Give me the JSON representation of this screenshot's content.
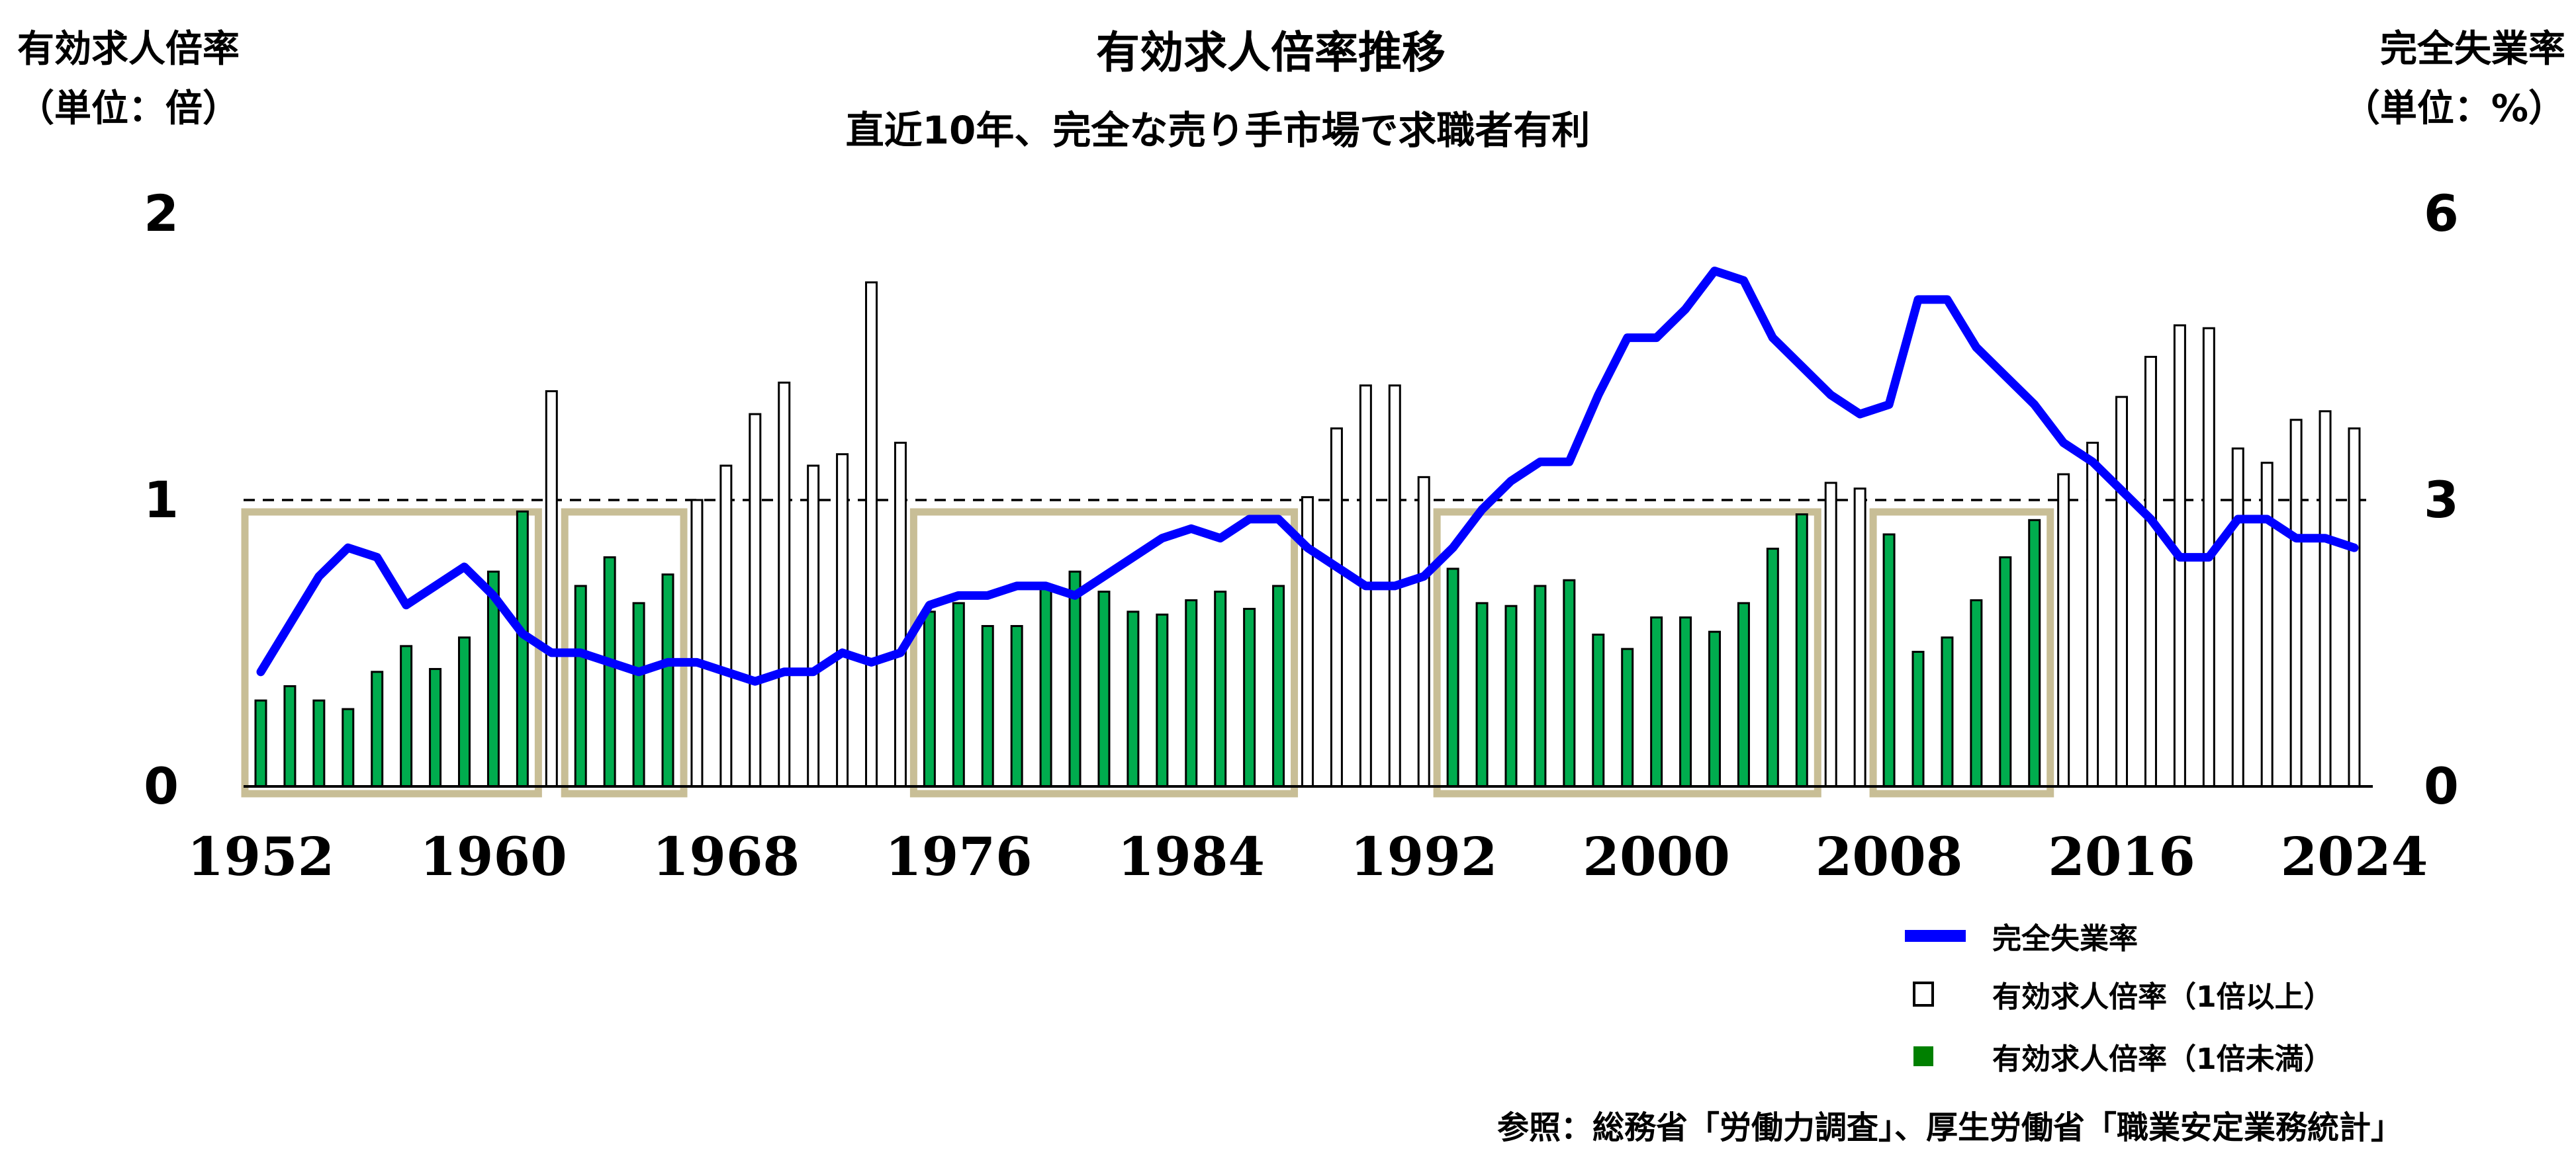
{
  "header": {
    "title": "有効求人倍率推移",
    "subtitle": "直近10年、完全な売り手市場で求職者有利",
    "left_axis_title": "有効求人倍率\n（単位：倍）",
    "right_axis_title": "完全失業率\n（単位：%）"
  },
  "legend": {
    "items": [
      {
        "label": "完全失業率",
        "marker": "line",
        "color": "#0000ff"
      },
      {
        "label": "有効求人倍率（1倍以上）",
        "marker": "hollow-square",
        "color": "#ffffff"
      },
      {
        "label": "有効求人倍率（1倍未満）",
        "marker": "solid-square",
        "color": "#008000"
      }
    ]
  },
  "source_note": "参照：総務省「労働力調査」、厚生労働省「職業安定業務統計」",
  "colors": {
    "line_blue": "#0000ff",
    "bar_green": "#00ac4e",
    "bar_white": "#ffffff",
    "bar_outline": "#000000",
    "highlight_box": "#c8be96",
    "reference_dash": "#000000",
    "axis": "#000000"
  },
  "chart_data": {
    "type": "bar",
    "title": "有効求人倍率推移",
    "subtitle": "直近10年、完全な売り手市場で求職者有利",
    "x_label": "",
    "left_y_label": "有効求人倍率（単位：倍）",
    "right_y_label": "完全失業率（単位：%）",
    "left_ylim": [
      0,
      2
    ],
    "right_ylim": [
      0,
      6
    ],
    "left_ticks": [
      0,
      1,
      2
    ],
    "right_ticks": [
      0,
      3,
      6
    ],
    "x_ticks": [
      1952,
      1960,
      1968,
      1976,
      1984,
      1992,
      2000,
      2008,
      2016,
      2024
    ],
    "reference_line_left_value": 1.0,
    "grid": false,
    "legend_position": "bottom-right",
    "x": [
      1952,
      1953,
      1954,
      1955,
      1956,
      1957,
      1958,
      1959,
      1960,
      1961,
      1962,
      1963,
      1964,
      1965,
      1966,
      1967,
      1968,
      1969,
      1970,
      1971,
      1972,
      1973,
      1974,
      1975,
      1976,
      1977,
      1978,
      1979,
      1980,
      1981,
      1982,
      1983,
      1984,
      1985,
      1986,
      1987,
      1988,
      1989,
      1990,
      1991,
      1992,
      1993,
      1994,
      1995,
      1996,
      1997,
      1998,
      1999,
      2000,
      2001,
      2002,
      2003,
      2004,
      2005,
      2006,
      2007,
      2008,
      2009,
      2010,
      2011,
      2012,
      2013,
      2014,
      2015,
      2016,
      2017,
      2018,
      2019,
      2020,
      2021,
      2022,
      2023,
      2024
    ],
    "series": [
      {
        "name": "有効求人倍率",
        "type": "bar",
        "axis": "left",
        "color_rule": "green (有効求人倍率（1倍未満）) if value < 1, white outlined (有効求人倍率（1倍以上）) if value >= 1",
        "values": [
          0.3,
          0.35,
          0.3,
          0.27,
          0.4,
          0.49,
          0.41,
          0.52,
          0.75,
          0.96,
          1.38,
          0.7,
          0.8,
          0.64,
          0.74,
          1.0,
          1.12,
          1.3,
          1.41,
          1.12,
          1.16,
          1.76,
          1.2,
          0.61,
          0.64,
          0.56,
          0.56,
          0.7,
          0.75,
          0.68,
          0.61,
          0.6,
          0.65,
          0.68,
          0.62,
          0.7,
          1.01,
          1.25,
          1.4,
          1.4,
          1.08,
          0.76,
          0.64,
          0.63,
          0.7,
          0.72,
          0.53,
          0.48,
          0.59,
          0.59,
          0.54,
          0.64,
          0.83,
          0.95,
          1.06,
          1.04,
          0.88,
          0.47,
          0.52,
          0.65,
          0.8,
          0.93,
          1.09,
          1.2,
          1.36,
          1.5,
          1.61,
          1.6,
          1.18,
          1.13,
          1.28,
          1.31,
          1.25
        ]
      },
      {
        "name": "完全失業率",
        "type": "line",
        "axis": "right",
        "values": [
          1.2,
          1.7,
          2.2,
          2.5,
          2.4,
          1.9,
          2.1,
          2.3,
          2.0,
          1.6,
          1.4,
          1.4,
          1.3,
          1.2,
          1.3,
          1.3,
          1.2,
          1.1,
          1.2,
          1.2,
          1.4,
          1.3,
          1.4,
          1.9,
          2.0,
          2.0,
          2.1,
          2.1,
          2.0,
          2.2,
          2.4,
          2.6,
          2.7,
          2.6,
          2.8,
          2.8,
          2.5,
          2.3,
          2.1,
          2.1,
          2.2,
          2.5,
          2.9,
          3.2,
          3.4,
          3.4,
          4.1,
          4.7,
          4.7,
          5.0,
          5.4,
          5.3,
          4.7,
          4.4,
          4.1,
          3.9,
          4.0,
          5.1,
          5.1,
          4.6,
          4.3,
          4.0,
          3.6,
          3.4,
          3.1,
          2.8,
          2.4,
          2.4,
          2.8,
          2.8,
          2.6,
          2.6,
          2.5
        ]
      }
    ],
    "highlight_boxes_year_ranges": [
      [
        1952,
        1961
      ],
      [
        1963,
        1966
      ],
      [
        1975,
        1987
      ],
      [
        1993,
        2005
      ],
      [
        2008,
        2013
      ]
    ]
  }
}
